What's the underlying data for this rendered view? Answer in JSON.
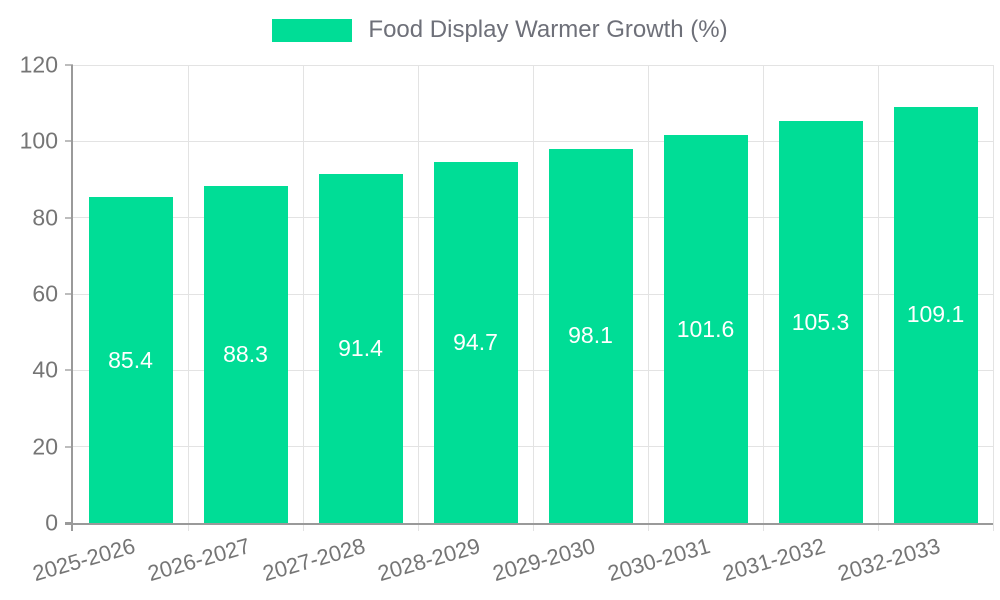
{
  "legend": {
    "label": "Food Display Warmer Growth (%)"
  },
  "colors": {
    "bar": "#00DD96",
    "axis_line": "#9a9a9a",
    "tick": "#bdbdbd",
    "grid_line": "#e3e3e3",
    "axis_text": "#757575",
    "value_label_text": "#ffffff",
    "background": "#ffffff"
  },
  "chart_data": {
    "type": "bar",
    "title": "Food Display Warmer Growth (%)",
    "categories": [
      "2025-2026",
      "2026-2027",
      "2027-2028",
      "2028-2029",
      "2029-2030",
      "2030-2031",
      "2031-2032",
      "2032-2033"
    ],
    "series": [
      {
        "name": "Food Display Warmer Growth (%)",
        "values": [
          85.4,
          88.3,
          91.4,
          94.7,
          98.1,
          101.6,
          105.3,
          109.1
        ]
      }
    ],
    "value_label_decimals": 1,
    "value_label_position": "inside-center",
    "xlabel": "",
    "ylabel": "",
    "ylim": [
      0,
      120
    ],
    "ytick_step": 20,
    "grid": true,
    "legend_position": "top-center"
  }
}
